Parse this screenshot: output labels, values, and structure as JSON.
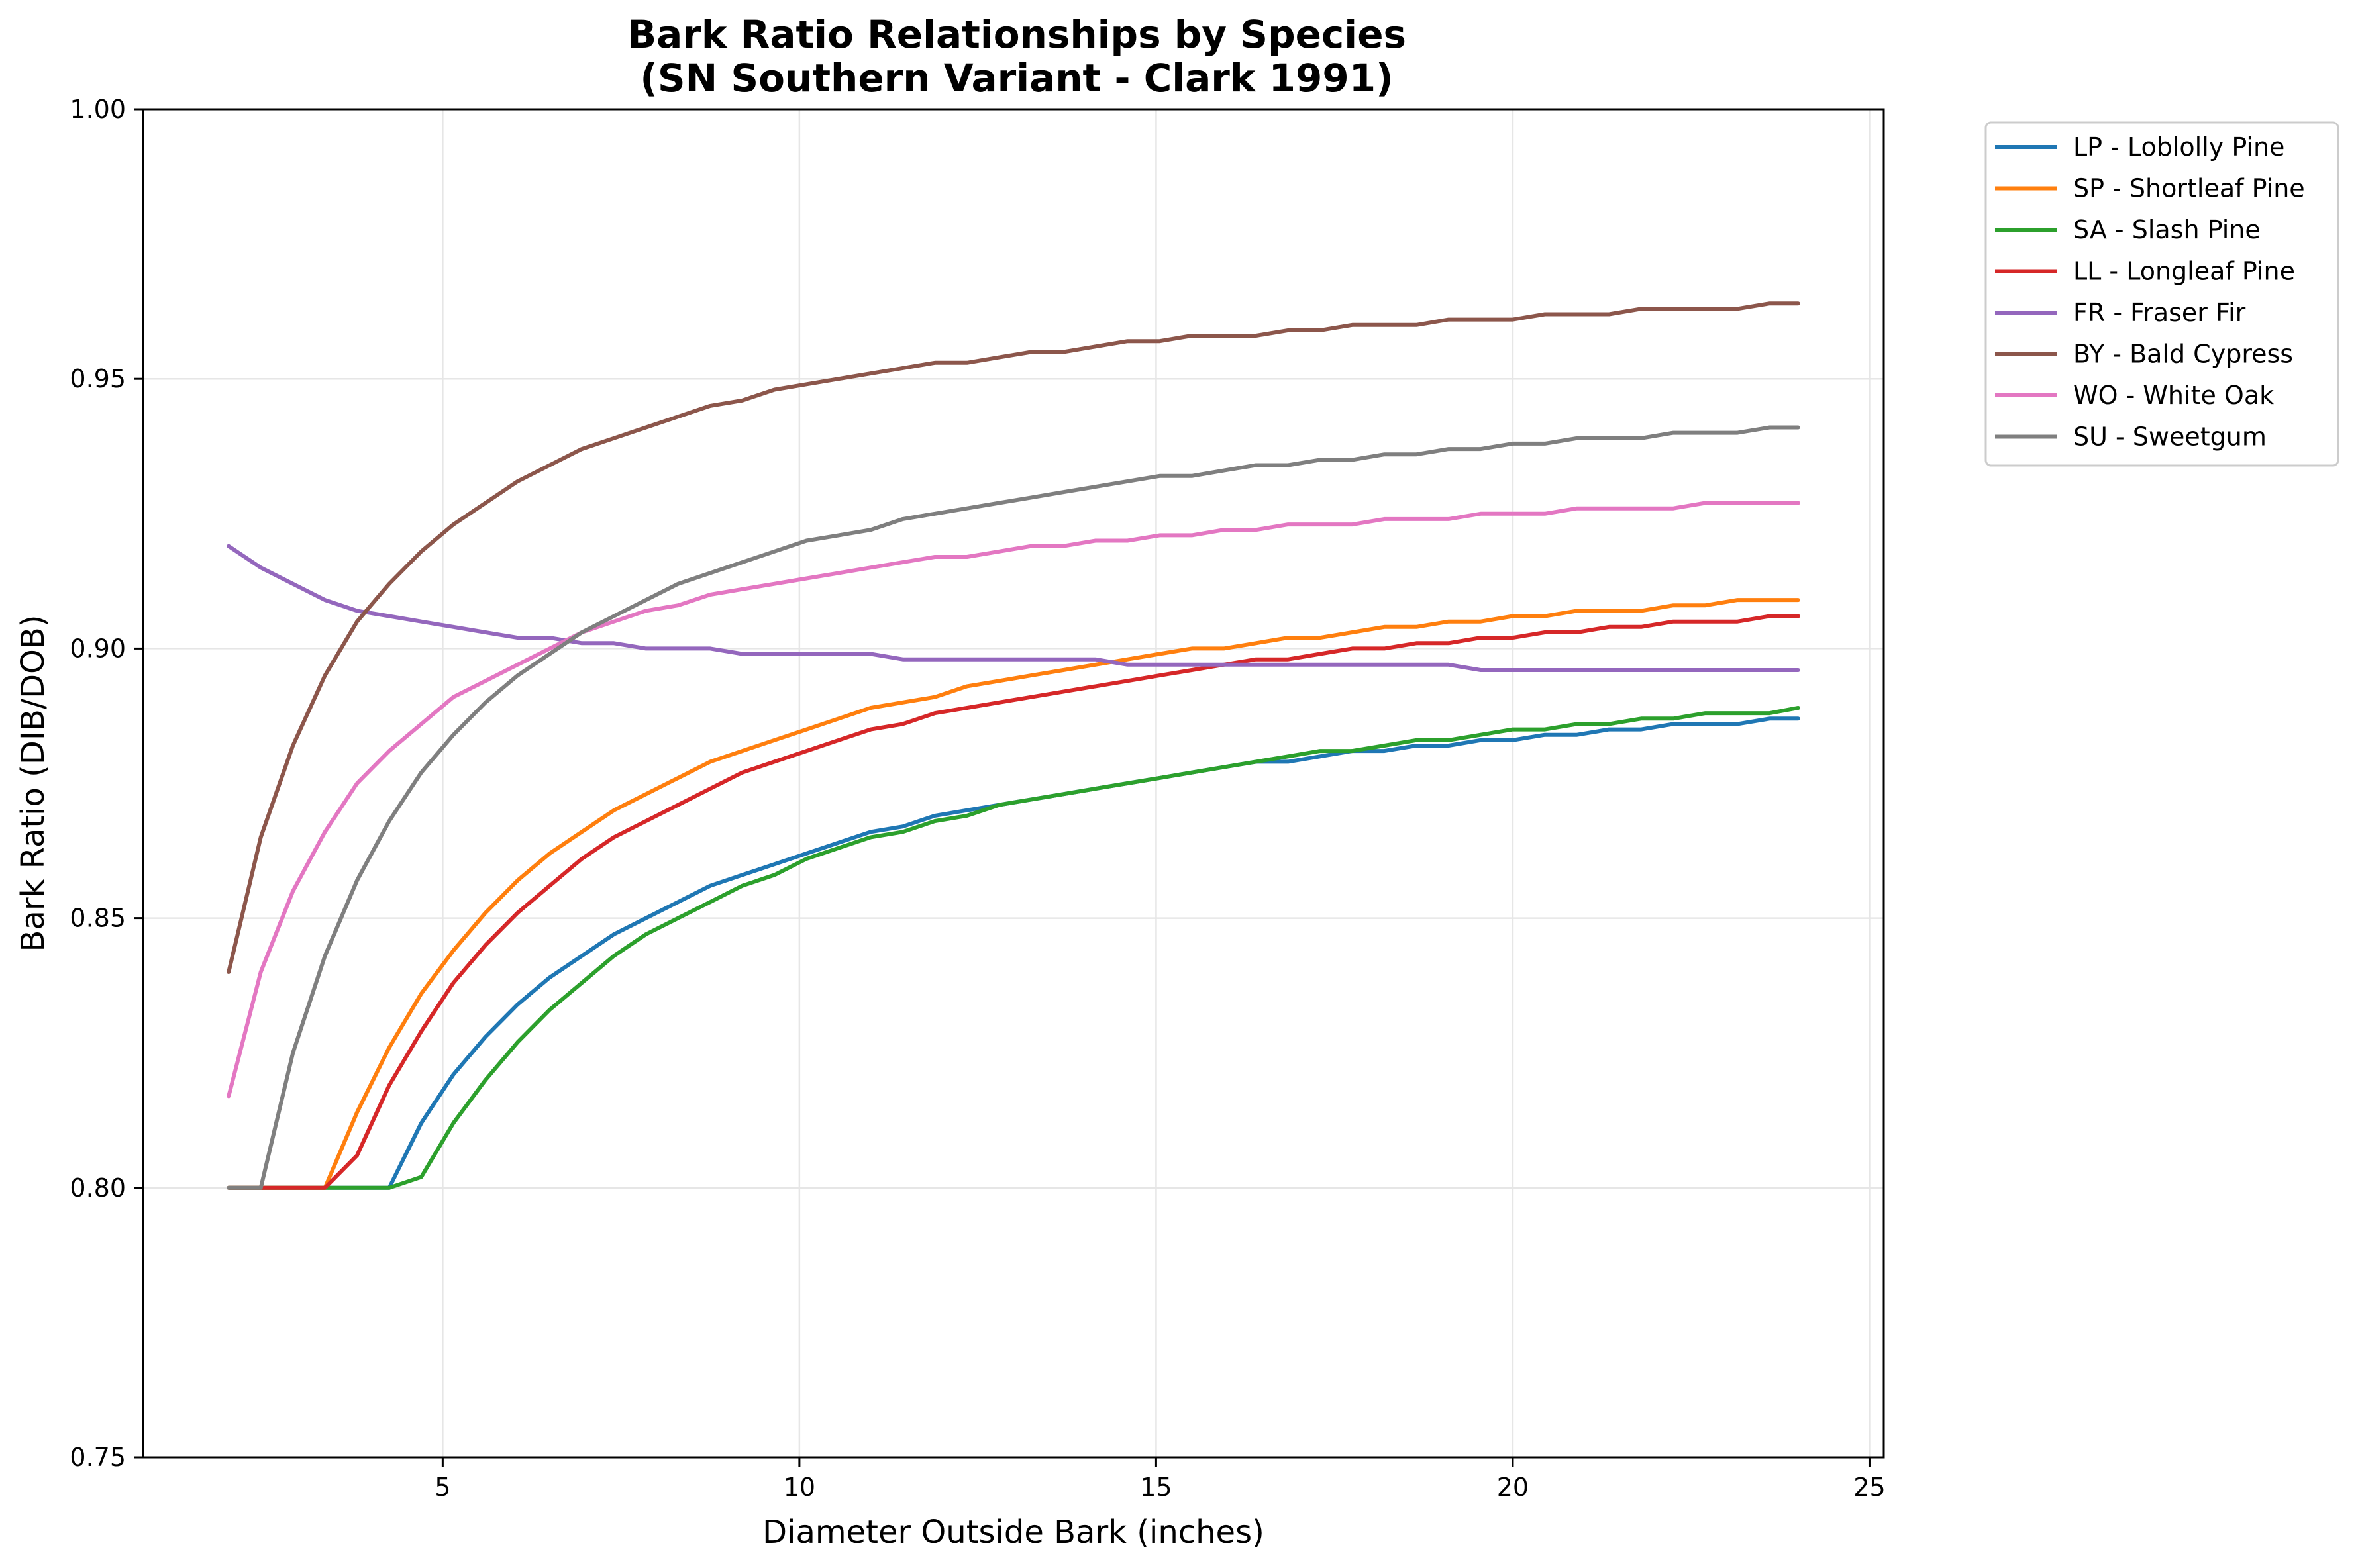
{
  "chart_data": {
    "type": "line",
    "title": "Bark Ratio Relationships by Species",
    "subtitle": "(SN Southern Variant - Clark 1991)",
    "xlabel": "Diameter Outside Bark (inches)",
    "ylabel": "Bark Ratio (DIB/DOB)",
    "xlim": [
      0.8,
      25.2
    ],
    "ylim": [
      0.75,
      1.0
    ],
    "xticks": [
      5,
      10,
      15,
      20,
      25
    ],
    "yticks": [
      0.75,
      0.8,
      0.85,
      0.9,
      0.95,
      1.0
    ],
    "xtick_labels": [
      "5",
      "10",
      "15",
      "20",
      "25"
    ],
    "ytick_labels": [
      "0.75",
      "0.80",
      "0.85",
      "0.90",
      "0.95",
      "1.00"
    ],
    "grid": true,
    "legend_position": "outside-top-right",
    "x": [
      2.0,
      2.45,
      2.9,
      3.35,
      3.8,
      4.25,
      4.7,
      5.15,
      5.6,
      6.05,
      6.5,
      6.95,
      7.4,
      7.85,
      8.3,
      8.75,
      9.2,
      9.65,
      10.1,
      10.55,
      11.0,
      11.45,
      11.9,
      12.35,
      12.8,
      13.25,
      13.7,
      14.15,
      14.6,
      15.05,
      15.5,
      15.95,
      16.4,
      16.85,
      17.3,
      17.75,
      18.2,
      18.65,
      19.1,
      19.55,
      20.0,
      20.45,
      20.9,
      21.35,
      21.8,
      22.25,
      22.7,
      23.15,
      23.6,
      24.0
    ],
    "series": [
      {
        "name": "LP - Loblolly Pine",
        "color": "#1f77b4",
        "values": [
          0.8,
          0.8,
          0.8,
          0.8,
          0.8,
          0.8,
          0.812,
          0.821,
          0.828,
          0.834,
          0.839,
          0.843,
          0.847,
          0.85,
          0.853,
          0.856,
          0.858,
          0.86,
          0.862,
          0.864,
          0.866,
          0.867,
          0.869,
          0.87,
          0.871,
          0.872,
          0.873,
          0.874,
          0.875,
          0.876,
          0.877,
          0.878,
          0.879,
          0.879,
          0.88,
          0.881,
          0.881,
          0.882,
          0.882,
          0.883,
          0.883,
          0.884,
          0.884,
          0.885,
          0.885,
          0.886,
          0.886,
          0.886,
          0.887,
          0.887
        ]
      },
      {
        "name": "SP - Shortleaf Pine",
        "color": "#ff7f0e",
        "values": [
          0.8,
          0.8,
          0.8,
          0.8,
          0.814,
          0.826,
          0.836,
          0.844,
          0.851,
          0.857,
          0.862,
          0.866,
          0.87,
          0.873,
          0.876,
          0.879,
          0.881,
          0.883,
          0.885,
          0.887,
          0.889,
          0.89,
          0.891,
          0.893,
          0.894,
          0.895,
          0.896,
          0.897,
          0.898,
          0.899,
          0.9,
          0.9,
          0.901,
          0.902,
          0.902,
          0.903,
          0.904,
          0.904,
          0.905,
          0.905,
          0.906,
          0.906,
          0.907,
          0.907,
          0.907,
          0.908,
          0.908,
          0.909,
          0.909,
          0.909
        ]
      },
      {
        "name": "SA - Slash Pine",
        "color": "#2ca02c",
        "values": [
          0.8,
          0.8,
          0.8,
          0.8,
          0.8,
          0.8,
          0.802,
          0.812,
          0.82,
          0.827,
          0.833,
          0.838,
          0.843,
          0.847,
          0.85,
          0.853,
          0.856,
          0.858,
          0.861,
          0.863,
          0.865,
          0.866,
          0.868,
          0.869,
          0.871,
          0.872,
          0.873,
          0.874,
          0.875,
          0.876,
          0.877,
          0.878,
          0.879,
          0.88,
          0.881,
          0.881,
          0.882,
          0.883,
          0.883,
          0.884,
          0.885,
          0.885,
          0.886,
          0.886,
          0.887,
          0.887,
          0.888,
          0.888,
          0.888,
          0.889
        ]
      },
      {
        "name": "LL - Longleaf Pine",
        "color": "#d62728",
        "values": [
          0.8,
          0.8,
          0.8,
          0.8,
          0.806,
          0.819,
          0.829,
          0.838,
          0.845,
          0.851,
          0.856,
          0.861,
          0.865,
          0.868,
          0.871,
          0.874,
          0.877,
          0.879,
          0.881,
          0.883,
          0.885,
          0.886,
          0.888,
          0.889,
          0.89,
          0.891,
          0.892,
          0.893,
          0.894,
          0.895,
          0.896,
          0.897,
          0.898,
          0.898,
          0.899,
          0.9,
          0.9,
          0.901,
          0.901,
          0.902,
          0.902,
          0.903,
          0.903,
          0.904,
          0.904,
          0.905,
          0.905,
          0.905,
          0.906,
          0.906
        ]
      },
      {
        "name": "FR - Fraser Fir",
        "color": "#9467bd",
        "values": [
          0.919,
          0.915,
          0.912,
          0.909,
          0.907,
          0.906,
          0.905,
          0.904,
          0.903,
          0.902,
          0.902,
          0.901,
          0.901,
          0.9,
          0.9,
          0.9,
          0.899,
          0.899,
          0.899,
          0.899,
          0.899,
          0.898,
          0.898,
          0.898,
          0.898,
          0.898,
          0.898,
          0.898,
          0.897,
          0.897,
          0.897,
          0.897,
          0.897,
          0.897,
          0.897,
          0.897,
          0.897,
          0.897,
          0.897,
          0.896,
          0.896,
          0.896,
          0.896,
          0.896,
          0.896,
          0.896,
          0.896,
          0.896,
          0.896,
          0.896
        ]
      },
      {
        "name": "BY - Bald Cypress",
        "color": "#8c564b",
        "values": [
          0.84,
          0.865,
          0.882,
          0.895,
          0.905,
          0.912,
          0.918,
          0.923,
          0.927,
          0.931,
          0.934,
          0.937,
          0.939,
          0.941,
          0.943,
          0.945,
          0.946,
          0.948,
          0.949,
          0.95,
          0.951,
          0.952,
          0.953,
          0.953,
          0.954,
          0.955,
          0.955,
          0.956,
          0.957,
          0.957,
          0.958,
          0.958,
          0.958,
          0.959,
          0.959,
          0.96,
          0.96,
          0.96,
          0.961,
          0.961,
          0.961,
          0.962,
          0.962,
          0.962,
          0.963,
          0.963,
          0.963,
          0.963,
          0.964,
          0.964
        ]
      },
      {
        "name": "WO - White Oak",
        "color": "#e377c2",
        "values": [
          0.817,
          0.84,
          0.855,
          0.866,
          0.875,
          0.881,
          0.886,
          0.891,
          0.894,
          0.897,
          0.9,
          0.903,
          0.905,
          0.907,
          0.908,
          0.91,
          0.911,
          0.912,
          0.913,
          0.914,
          0.915,
          0.916,
          0.917,
          0.917,
          0.918,
          0.919,
          0.919,
          0.92,
          0.92,
          0.921,
          0.921,
          0.922,
          0.922,
          0.923,
          0.923,
          0.923,
          0.924,
          0.924,
          0.924,
          0.925,
          0.925,
          0.925,
          0.926,
          0.926,
          0.926,
          0.926,
          0.927,
          0.927,
          0.927,
          0.927
        ]
      },
      {
        "name": "SU - Sweetgum",
        "color": "#7f7f7f",
        "values": [
          0.8,
          0.8,
          0.825,
          0.843,
          0.857,
          0.868,
          0.877,
          0.884,
          0.89,
          0.895,
          0.899,
          0.903,
          0.906,
          0.909,
          0.912,
          0.914,
          0.916,
          0.918,
          0.92,
          0.921,
          0.922,
          0.924,
          0.925,
          0.926,
          0.927,
          0.928,
          0.929,
          0.93,
          0.931,
          0.932,
          0.932,
          0.933,
          0.934,
          0.934,
          0.935,
          0.935,
          0.936,
          0.936,
          0.937,
          0.937,
          0.938,
          0.938,
          0.939,
          0.939,
          0.939,
          0.94,
          0.94,
          0.94,
          0.941,
          0.941
        ]
      }
    ]
  }
}
